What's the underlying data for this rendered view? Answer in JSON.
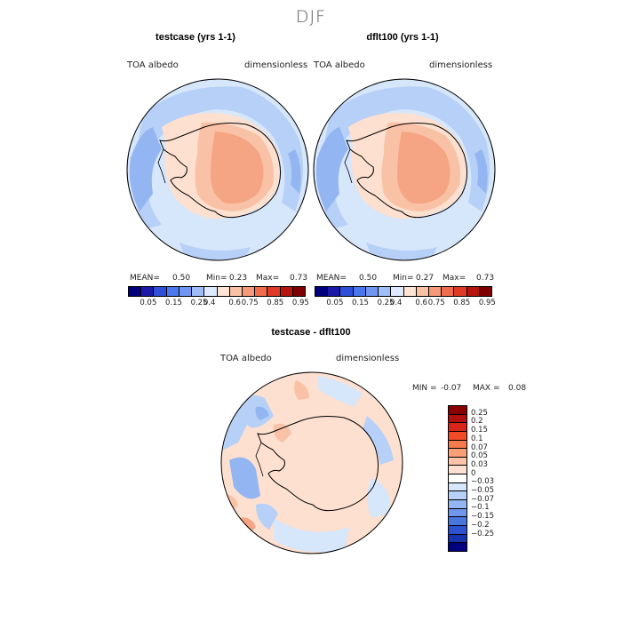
{
  "title": "DJF",
  "panels": {
    "left": {
      "title": "testcase (yrs 1-1)",
      "variable": "TOA albedo",
      "units": "dimensionless",
      "stats": {
        "mean_label": "MEAN=",
        "mean": "0.50",
        "min_label": "Min=",
        "min": "0.23",
        "max_label": "Max=",
        "max": "0.73"
      }
    },
    "right": {
      "title": "dflt100 (yrs 1-1)",
      "variable": "TOA albedo",
      "units": "dimensionless",
      "stats": {
        "mean_label": "MEAN=",
        "mean": "0.50",
        "min_label": "Min=",
        "min": "0.27",
        "max_label": "Max=",
        "max": "0.73"
      }
    },
    "diff": {
      "title": "testcase - dflt100",
      "variable": "TOA albedo",
      "units": "dimensionless",
      "stats": {
        "min_label": "MIN =",
        "min": "-0.07",
        "max_label": "MAX =",
        "max": "0.08"
      }
    }
  },
  "colorbar": {
    "colors": [
      "#00007f",
      "#1a1aa6",
      "#2f4fd8",
      "#4a76ee",
      "#6f97f2",
      "#9fbdf6",
      "#ddeaff",
      "#fde4d4",
      "#f9c2a6",
      "#f59a78",
      "#ef6d4c",
      "#de3a26",
      "#b5140f",
      "#7f0000"
    ],
    "labels": [
      "0.05",
      "0.15",
      "0.25",
      "0.4",
      "0.6",
      "0.75",
      "0.85",
      "0.95"
    ]
  },
  "diff_colorbar": {
    "colors": [
      "#8a0000",
      "#b30f0f",
      "#d9261b",
      "#f04a26",
      "#f77a4d",
      "#f9a078",
      "#fcc3a6",
      "#fde0cf",
      "#ffffff",
      "#d6e6fb",
      "#b7d0f7",
      "#93b6f2",
      "#6f97ec",
      "#4a76e0",
      "#2c52cf",
      "#1733b0",
      "#00007f"
    ],
    "labels": [
      "0.25",
      "0.2",
      "0.15",
      "0.1",
      "0.07",
      "0.05",
      "0.03",
      "0",
      "-0.03",
      "-0.05",
      "-0.07",
      "-0.1",
      "-0.15",
      "-0.2",
      "-0.25"
    ]
  },
  "map_colors": {
    "ocean_light": "#d6e6fb",
    "ocean_mid": "#b7d0f7",
    "ocean_dark": "#93b6f2",
    "land_light": "#fde0cf",
    "land_mid": "#f9c2a6",
    "land_dark": "#f5a583"
  }
}
